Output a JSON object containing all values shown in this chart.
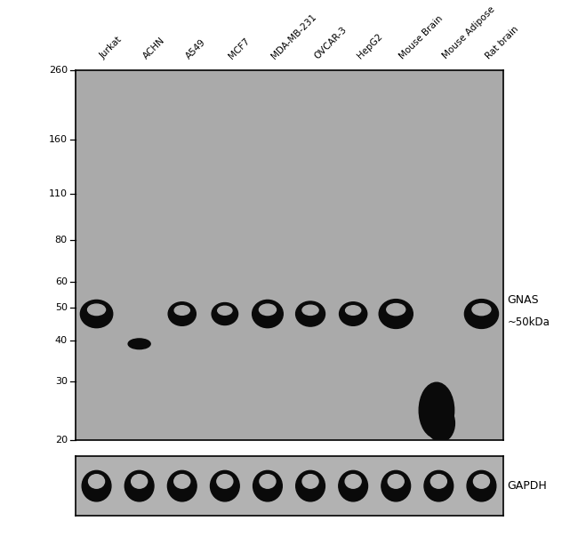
{
  "white_bg": "#ffffff",
  "main_panel_color": "#aaaaaa",
  "gapdh_panel_color": "#b2b2b2",
  "band_color": "#0a0a0a",
  "fig_width": 6.5,
  "fig_height": 6.04,
  "samples": [
    "Jurkat",
    "ACHN",
    "A549",
    "MCF7",
    "MDA-MB-231",
    "OVCAR-3",
    "HepG2",
    "Mouse Brain",
    "Mouse Adipose",
    "Rat brain"
  ],
  "mw_positions": [
    260,
    160,
    110,
    80,
    60,
    50,
    40,
    30,
    20
  ],
  "right_labels": [
    "GNAS",
    "~50kDa"
  ],
  "gapdh_label": "GAPDH",
  "log_min": 1.30103,
  "log_max": 2.41497
}
